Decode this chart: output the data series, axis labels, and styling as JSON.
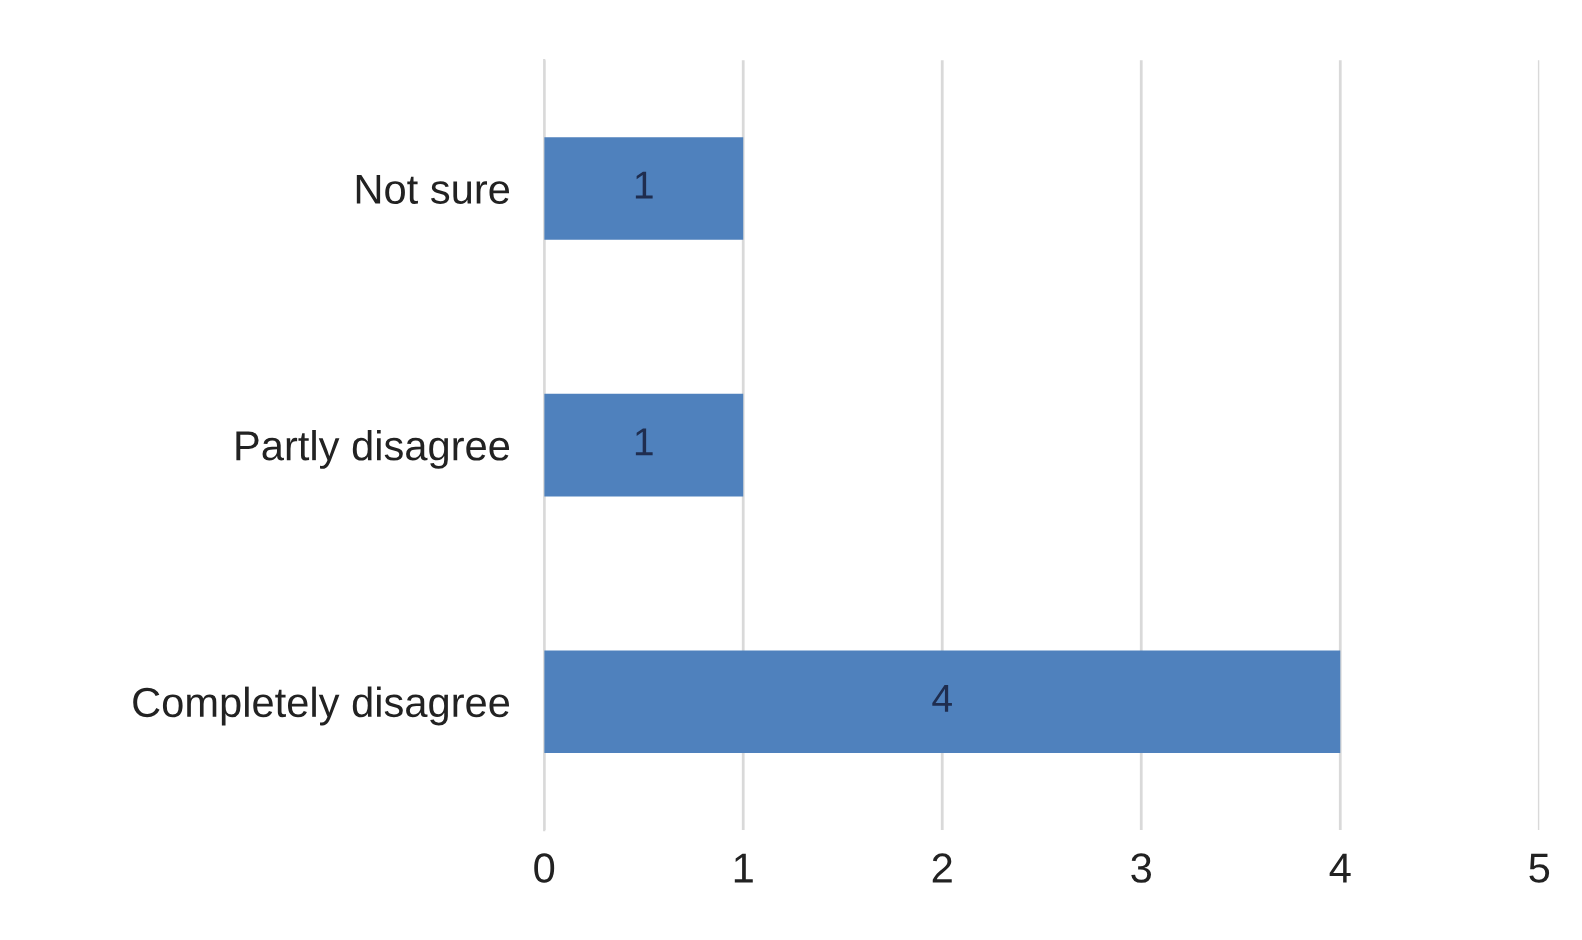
{
  "chart_data": {
    "type": "bar",
    "orientation": "horizontal",
    "categories": [
      "Not sure",
      "Partly disagree",
      "Completely disagree"
    ],
    "values": [
      1,
      1,
      4
    ],
    "color": "#4f81bd",
    "xlim": [
      0,
      5
    ],
    "xticks": [
      0,
      1,
      2,
      3,
      4,
      5
    ],
    "grid": "x",
    "data_labels": true
  }
}
